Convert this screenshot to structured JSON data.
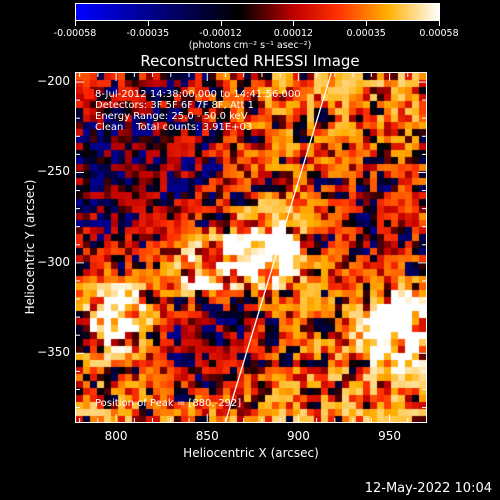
{
  "colorbar": {
    "tick_labels": [
      "-0.00058",
      "-0.00035",
      "-0.00012",
      "0.00012",
      "0.00035",
      "0.00058"
    ],
    "unit_label": "(photons cm⁻² s⁻¹ asec⁻²)",
    "colors": [
      "#0000ff",
      "#000000",
      "#c00000",
      "#ff3000",
      "#ffb000",
      "#ffffff"
    ]
  },
  "chart_data": {
    "type": "heatmap",
    "title": "Reconstructed RHESSI Image",
    "xlabel": "Heliocentric X (arcsec)",
    "ylabel": "Heliocentric Y (arcsec)",
    "xlim": [
      778,
      970
    ],
    "ylim": [
      -388,
      -195
    ],
    "x_ticks": [
      800,
      850,
      900,
      950
    ],
    "y_ticks": [
      -200,
      -250,
      -300,
      -350
    ],
    "peak_position": [
      880,
      -292
    ],
    "sources": [
      {
        "x": 880,
        "y": -293,
        "intensity": 1.0
      },
      {
        "x": 955,
        "y": -335,
        "intensity": 0.85
      },
      {
        "x": 803,
        "y": -330,
        "intensity": 0.75
      },
      {
        "x": 848,
        "y": -305,
        "intensity": 0.6
      }
    ],
    "limb_line": [
      [
        860,
        -388
      ],
      [
        918,
        -195
      ]
    ],
    "grid": false
  },
  "info": {
    "time_range": "8-Jul-2012 14:38:00.000 to 14:41:56.000",
    "detectors": "Detectors: 3F 5F 6F 7F 8F, Att 1",
    "energy": "Energy Range: 25.0 - 50.0 keV",
    "clean": "Clean    Total counts: 3.91E+03",
    "peak": "Position of Peak = [880,-292]",
    "legend_swatch_color": "#ff2000"
  },
  "timestamp": "12-May-2022 10:04"
}
